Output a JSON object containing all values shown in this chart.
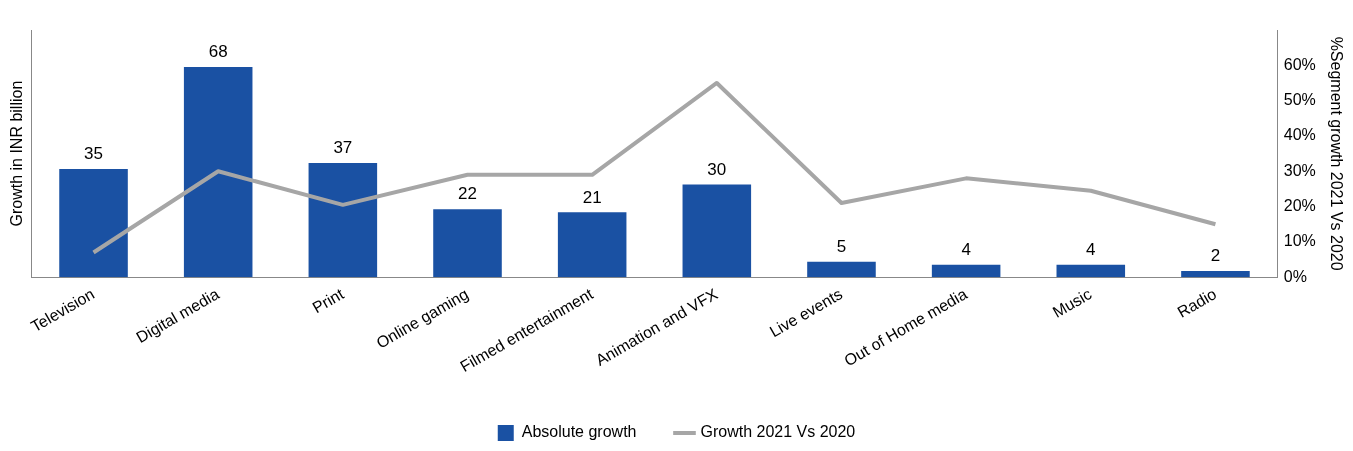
{
  "chart_data": {
    "type": "bar",
    "ylabel": "Growth in INR billion",
    "y2label": "%Segment growth 2021 Vs 2020",
    "categories": [
      "Television",
      "Digital media",
      "Print",
      "Online gaming",
      "Filmed entertainment",
      "Animation and VFX",
      "Live events",
      "Out of Home media",
      "Music",
      "Radio"
    ],
    "series": [
      {
        "name": "Absolute growth",
        "color": "#1a51a3",
        "values": [
          35,
          68,
          37,
          22,
          21,
          30,
          5,
          4,
          4,
          2
        ],
        "value_labels": [
          "35",
          "68",
          "37",
          "22",
          "21",
          "30",
          "5",
          "4",
          "4",
          "2"
        ]
      },
      {
        "name": "Growth 2021 Vs 2020",
        "type": "line",
        "axis": "y2",
        "color": "#a6a6a6",
        "marker": "none",
        "values": [
          7,
          30,
          20.5,
          29,
          29,
          55,
          21,
          28,
          24.5,
          15
        ]
      }
    ],
    "y2lim": [
      0,
      70
    ],
    "y2ticks": [
      {
        "value": 0,
        "label": "0%"
      },
      {
        "value": 10,
        "label": "10%"
      },
      {
        "value": 20,
        "label": "20%"
      },
      {
        "value": 30,
        "label": "30%"
      },
      {
        "value": 40,
        "label": "40%"
      },
      {
        "value": 50,
        "label": "50%"
      },
      {
        "value": 60,
        "label": "60%"
      }
    ],
    "grid": false,
    "legend": "bottom"
  }
}
